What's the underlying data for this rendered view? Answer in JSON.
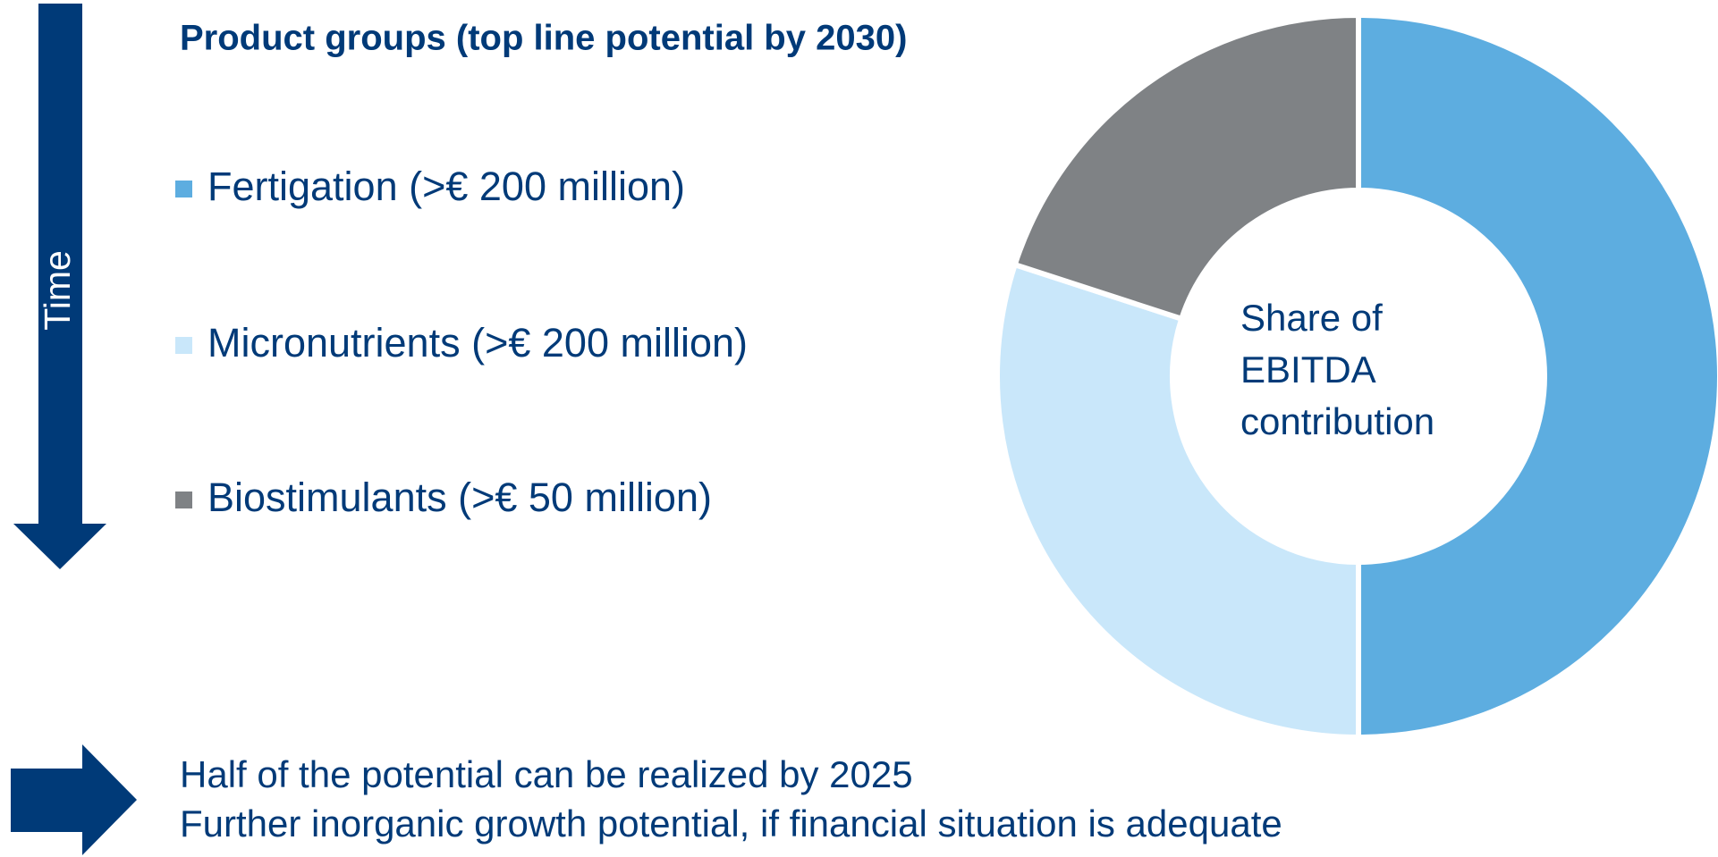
{
  "chart_data": {
    "type": "donut",
    "title": "Product groups (top line potential by 2030)",
    "side_label": "Time",
    "categories": [
      "Fertigation (>€ 200 million)",
      "Micronutrients (>€ 200 million)",
      "Biostimulants (>€ 50 million)"
    ],
    "values": [
      50,
      30,
      20
    ],
    "colors": [
      "#5dade0",
      "#c9e7fa",
      "#7f8285"
    ],
    "center_label": [
      "Share of",
      "EBITDA",
      "contribution"
    ],
    "notes": [
      "Half of the potential can be realized by 2025",
      "Further inorganic growth potential, if financial situation is adequate"
    ]
  }
}
